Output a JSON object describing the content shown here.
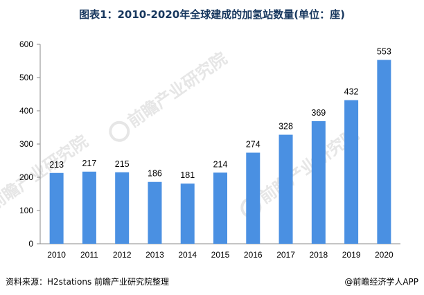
{
  "chart_data": {
    "type": "bar",
    "title": "图表1：2010-2020年全球建成的加氢站数量(单位：座)",
    "categories": [
      "2010",
      "2011",
      "2012",
      "2013",
      "2014",
      "2015",
      "2016",
      "2017",
      "2018",
      "2019",
      "2020"
    ],
    "series": [
      {
        "values": [
          213,
          217,
          215,
          186,
          181,
          214,
          274,
          328,
          369,
          432,
          553
        ]
      }
    ],
    "xlabel": "",
    "ylabel": "",
    "ylim": [
      0,
      600
    ],
    "yticks": [
      0,
      100,
      200,
      300,
      400,
      500,
      600
    ],
    "grid": false,
    "bar_color": "#4a90e2",
    "show_data_labels": true
  },
  "watermark": {
    "text": "前瞻产业研究院",
    "color": "#e6e6e6"
  },
  "footer": {
    "source": "资料来源：H2stations 前瞻产业研究院整理",
    "credit": "@前瞻经济学人APP"
  }
}
